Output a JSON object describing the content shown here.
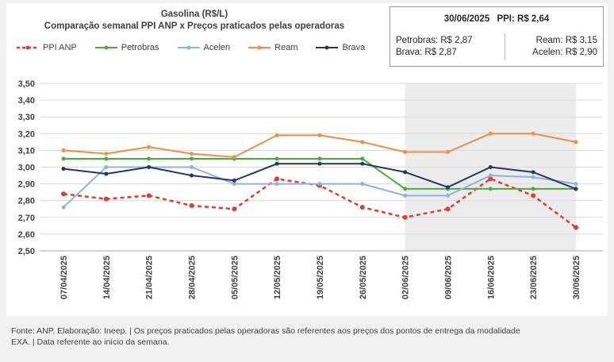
{
  "chart_data": {
    "type": "line",
    "title": "Gasolina (R$/L)",
    "subtitle": "Comparação semanal PPI ANP x Preços praticados pelas operadoras",
    "categories": [
      "07/04/2025",
      "14/04/2025",
      "21/04/2025",
      "28/04/2025",
      "05/05/2025",
      "12/05/2025",
      "19/05/2025",
      "26/05/2025",
      "02/06/2025",
      "09/06/2025",
      "16/06/2025",
      "23/06/2025",
      "30/06/2025"
    ],
    "y_ticks": [
      "3,50",
      "3,40",
      "3,30",
      "3,20",
      "3,10",
      "3,00",
      "2,90",
      "2,80",
      "2,70",
      "2,60",
      "2,50"
    ],
    "ylim": [
      2.5,
      3.5
    ],
    "shaded_range": [
      "02/06/2025",
      "30/06/2025"
    ],
    "series": [
      {
        "name": "PPI ANP",
        "color": "#e03c31",
        "dashed": true,
        "marker": true,
        "values": [
          2.84,
          2.81,
          2.83,
          2.77,
          2.75,
          2.93,
          2.89,
          2.76,
          2.7,
          2.75,
          2.93,
          2.83,
          2.64
        ]
      },
      {
        "name": "Petrobras",
        "color": "#4daa3c",
        "dashed": false,
        "marker": true,
        "values": [
          3.05,
          3.05,
          3.05,
          3.05,
          3.05,
          3.05,
          3.05,
          3.05,
          2.87,
          2.87,
          2.87,
          2.87,
          2.87
        ]
      },
      {
        "name": "Acelen",
        "color": "#8fb3dd",
        "dashed": false,
        "marker": true,
        "values": [
          2.76,
          3.0,
          3.0,
          3.0,
          2.9,
          2.9,
          2.9,
          2.9,
          2.83,
          2.83,
          2.95,
          2.94,
          2.9
        ]
      },
      {
        "name": "Ream",
        "color": "#ee8f45",
        "dashed": false,
        "marker": true,
        "values": [
          3.1,
          3.08,
          3.12,
          3.08,
          3.06,
          3.19,
          3.19,
          3.15,
          3.09,
          3.09,
          3.2,
          3.2,
          3.15
        ]
      },
      {
        "name": "Brava",
        "color": "#1f3864",
        "dashed": false,
        "marker": true,
        "values": [
          2.99,
          2.96,
          3.0,
          2.95,
          2.92,
          3.02,
          3.02,
          3.02,
          2.97,
          2.88,
          3.0,
          2.97,
          2.87
        ]
      }
    ]
  },
  "infobox": {
    "date": "30/06/2025",
    "ppi": "PPI: R$ 2,64",
    "petrobras": "Petrobras: R$ 2,87",
    "brava": "Brava: R$ 2,87",
    "ream": "Ream: R$ 3,15",
    "acelen": "Acelen: R$ 2,90"
  },
  "footer": {
    "line1": "Fonte: ANP. Elaboração: Ineep. | Os preços praticados pelas operadoras são referentes aos preços dos pontos de entrega da modalidade",
    "line2": "EXA. | Data referente ao início da semana."
  }
}
